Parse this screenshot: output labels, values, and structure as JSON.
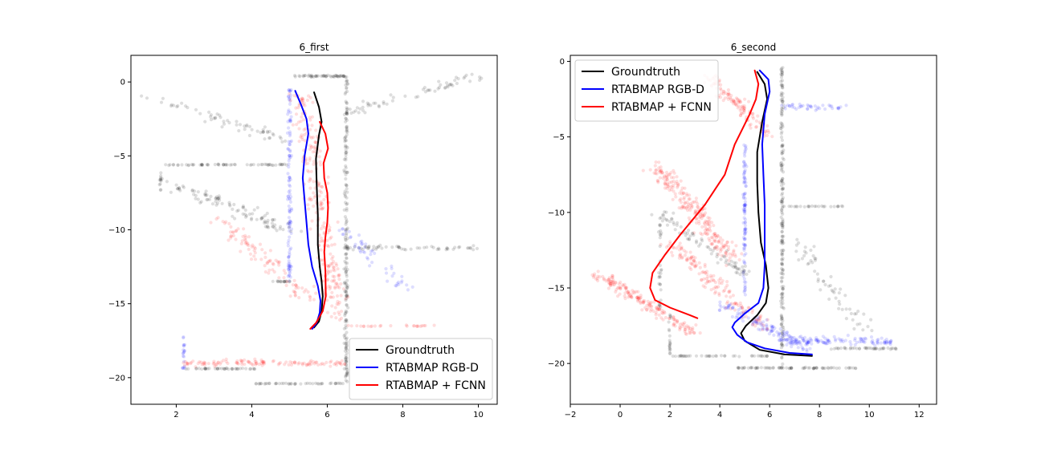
{
  "colors": {
    "groundtruth": "#000000",
    "rgbd": "#0000ff",
    "fcnn": "#ff0000",
    "background": "#ffffff",
    "axes": "#000000"
  },
  "chart_data": [
    {
      "type": "line",
      "title": "6_first",
      "xlabel": "",
      "ylabel": "",
      "xlim": [
        0.8,
        10.5
      ],
      "ylim": [
        -21.8,
        1.8
      ],
      "xticks": [
        2,
        4,
        6,
        8,
        10
      ],
      "xtick_labels": [
        "2",
        "4",
        "6",
        "8",
        "10"
      ],
      "yticks": [
        0,
        -5,
        -10,
        -15,
        -20
      ],
      "ytick_labels": [
        "0",
        "−5",
        "−10",
        "−15",
        "−20"
      ],
      "grid": false,
      "legend_position": "lower-right",
      "legend": [
        "Groundtruth",
        "RTABMAP RGB-D",
        "RTABMAP + FCNN"
      ],
      "series": [
        {
          "name": "Groundtruth",
          "color": "#000000",
          "x": [
            5.65,
            5.78,
            5.85,
            5.78,
            5.7,
            5.72,
            5.75,
            5.75,
            5.8,
            5.85,
            5.88,
            5.85,
            5.78,
            5.65
          ],
          "y": [
            -0.7,
            -1.7,
            -2.7,
            -3.6,
            -5.2,
            -7.0,
            -9.0,
            -11.0,
            -12.5,
            -13.5,
            -14.5,
            -15.5,
            -16.2,
            -16.6
          ]
        },
        {
          "name": "RTABMAP RGB-D",
          "color": "#0000ff",
          "x": [
            5.15,
            5.3,
            5.45,
            5.5,
            5.4,
            5.35,
            5.4,
            5.45,
            5.5,
            5.6,
            5.75,
            5.82,
            5.8,
            5.72,
            5.6
          ],
          "y": [
            -0.6,
            -1.5,
            -2.5,
            -3.5,
            -5.0,
            -6.5,
            -8.0,
            -9.5,
            -11.0,
            -12.5,
            -13.8,
            -14.8,
            -15.6,
            -16.3,
            -16.7
          ]
        },
        {
          "name": "RTABMAP + FCNN",
          "color": "#ff0000",
          "x": [
            5.8,
            5.95,
            6.02,
            5.9,
            5.92,
            6.0,
            6.02,
            6.0,
            5.95,
            5.92,
            5.95,
            5.96,
            5.88,
            5.7,
            5.55
          ],
          "y": [
            -2.7,
            -3.5,
            -4.5,
            -5.5,
            -6.5,
            -7.5,
            -8.5,
            -9.5,
            -10.5,
            -11.5,
            -12.8,
            -14.5,
            -15.5,
            -16.3,
            -16.7
          ]
        }
      ]
    },
    {
      "type": "line",
      "title": "6_second",
      "xlabel": "",
      "ylabel": "",
      "xlim": [
        -2,
        12.7
      ],
      "ylim": [
        -22.7,
        0.4
      ],
      "xticks": [
        -2,
        0,
        2,
        4,
        6,
        8,
        10,
        12
      ],
      "xtick_labels": [
        "−2",
        "0",
        "2",
        "4",
        "6",
        "8",
        "10",
        "12"
      ],
      "yticks": [
        0,
        -5,
        -10,
        -15,
        -20
      ],
      "ytick_labels": [
        "0",
        "−5",
        "−10",
        "−15",
        "−20"
      ],
      "grid": false,
      "legend_position": "upper-left",
      "legend": [
        "Groundtruth",
        "RTABMAP RGB-D",
        "RTABMAP + FCNN"
      ],
      "series": [
        {
          "name": "Groundtruth",
          "color": "#000000",
          "x": [
            5.5,
            5.8,
            5.9,
            5.7,
            5.5,
            5.5,
            5.55,
            5.65,
            5.85,
            5.95,
            5.85,
            5.5,
            5.05,
            4.85,
            5.0,
            5.6,
            6.6,
            7.7
          ],
          "y": [
            -0.7,
            -1.5,
            -2.5,
            -4.0,
            -6.0,
            -8.0,
            -10.0,
            -12.0,
            -13.5,
            -15.0,
            -16.0,
            -16.8,
            -17.5,
            -18.0,
            -18.5,
            -19.1,
            -19.4,
            -19.5
          ]
        },
        {
          "name": "RTABMAP RGB-D",
          "color": "#0000ff",
          "x": [
            5.6,
            5.95,
            6.0,
            5.8,
            5.7,
            5.75,
            5.8,
            5.8,
            5.8,
            5.75,
            5.55,
            5.0,
            4.6,
            4.5,
            4.7,
            5.1,
            5.8,
            6.8,
            7.7
          ],
          "y": [
            -0.6,
            -1.2,
            -2.0,
            -3.5,
            -5.5,
            -7.5,
            -9.5,
            -11.5,
            -13.5,
            -15.0,
            -16.0,
            -16.7,
            -17.3,
            -17.6,
            -18.1,
            -18.6,
            -19.0,
            -19.3,
            -19.4
          ]
        },
        {
          "name": "RTABMAP + FCNN",
          "color": "#ff0000",
          "x": [
            5.4,
            5.55,
            5.45,
            5.2,
            4.9,
            4.6,
            4.4,
            4.2,
            3.8,
            3.4,
            2.9,
            2.4,
            1.8,
            1.3,
            1.2,
            1.4,
            2.0,
            2.8,
            3.1
          ],
          "y": [
            -0.6,
            -1.5,
            -2.5,
            -3.5,
            -4.5,
            -5.5,
            -6.5,
            -7.5,
            -8.5,
            -9.5,
            -10.5,
            -11.5,
            -12.8,
            -14.0,
            -15.0,
            -15.8,
            -16.3,
            -16.8,
            -17.0
          ]
        }
      ]
    }
  ]
}
